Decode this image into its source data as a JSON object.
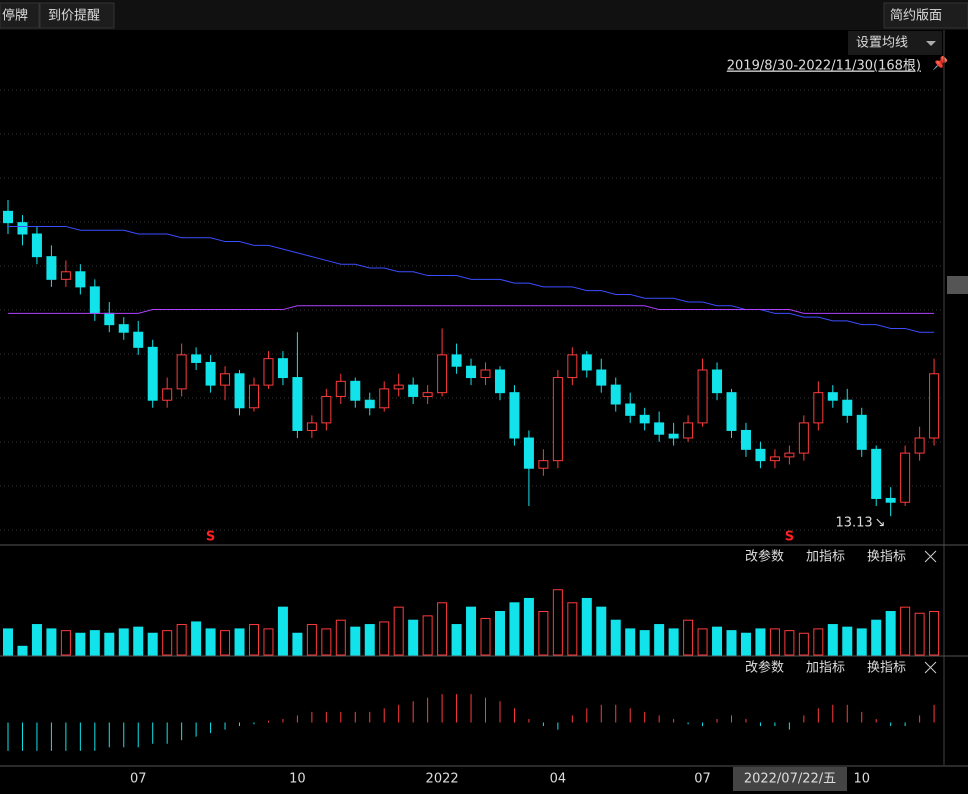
{
  "toolbar": {
    "left": [
      "停牌",
      "到价提醒"
    ],
    "right": "简约版面"
  },
  "panel_buttons": [
    "改参数",
    "加指标",
    "换指标"
  ],
  "chart_data": {
    "type": "candlestick",
    "ma_button": "设置均线",
    "range_label": "2019/8/30-2022/11/30(168根)",
    "crosshair_date": "2022/07/22/五",
    "up_color": "#ff3b3b",
    "down_color": "#12e3ea",
    "ylim": [
      12.5,
      26
    ],
    "categories": [
      null,
      null,
      null,
      null,
      null,
      null,
      null,
      null,
      null,
      "07",
      null,
      null,
      null,
      null,
      null,
      null,
      null,
      null,
      null,
      null,
      "10",
      null,
      null,
      null,
      null,
      null,
      null,
      null,
      null,
      null,
      "2022",
      null,
      null,
      null,
      null,
      null,
      null,
      null,
      "04",
      null,
      null,
      null,
      null,
      null,
      null,
      null,
      null,
      null,
      "07",
      null,
      null,
      null,
      null,
      null,
      null,
      null,
      null,
      null,
      null,
      "10",
      null,
      null,
      null,
      null,
      null
    ],
    "ohlc": [
      [
        21.2,
        21.5,
        20.6,
        20.9
      ],
      [
        20.9,
        21.1,
        20.3,
        20.6
      ],
      [
        20.6,
        20.8,
        19.8,
        20.0
      ],
      [
        20.0,
        20.3,
        19.2,
        19.4
      ],
      [
        19.4,
        19.9,
        19.2,
        19.6
      ],
      [
        19.6,
        19.8,
        19.0,
        19.2
      ],
      [
        19.2,
        19.4,
        18.3,
        18.5
      ],
      [
        18.5,
        18.8,
        18.0,
        18.2
      ],
      [
        18.2,
        18.4,
        17.8,
        18.0
      ],
      [
        18.0,
        18.3,
        17.4,
        17.6
      ],
      [
        17.6,
        17.8,
        16.0,
        16.2
      ],
      [
        16.2,
        16.8,
        16.0,
        16.5
      ],
      [
        16.5,
        17.7,
        16.3,
        17.4
      ],
      [
        17.4,
        17.6,
        17.0,
        17.2
      ],
      [
        17.2,
        17.4,
        16.4,
        16.6
      ],
      [
        16.6,
        17.1,
        16.2,
        16.9
      ],
      [
        16.9,
        17.0,
        15.8,
        16.0
      ],
      [
        16.0,
        16.8,
        15.9,
        16.6
      ],
      [
        16.6,
        17.5,
        16.5,
        17.3
      ],
      [
        17.3,
        17.5,
        16.6,
        16.8
      ],
      [
        16.8,
        18.0,
        15.2,
        15.4
      ],
      [
        15.4,
        15.8,
        15.2,
        15.6
      ],
      [
        15.6,
        16.5,
        15.4,
        16.3
      ],
      [
        16.3,
        16.9,
        16.1,
        16.7
      ],
      [
        16.7,
        16.8,
        16.0,
        16.2
      ],
      [
        16.2,
        16.4,
        15.8,
        16.0
      ],
      [
        16.0,
        16.7,
        15.9,
        16.5
      ],
      [
        16.5,
        16.9,
        16.3,
        16.6
      ],
      [
        16.6,
        16.8,
        16.1,
        16.3
      ],
      [
        16.3,
        16.6,
        16.1,
        16.4
      ],
      [
        16.4,
        18.1,
        16.3,
        17.4
      ],
      [
        17.4,
        17.7,
        16.9,
        17.1
      ],
      [
        17.1,
        17.3,
        16.6,
        16.8
      ],
      [
        16.8,
        17.2,
        16.6,
        17.0
      ],
      [
        17.0,
        17.1,
        16.2,
        16.4
      ],
      [
        16.4,
        16.6,
        15.0,
        15.2
      ],
      [
        15.2,
        15.4,
        13.4,
        14.4
      ],
      [
        14.4,
        14.9,
        14.2,
        14.6
      ],
      [
        14.6,
        17.0,
        14.4,
        16.8
      ],
      [
        16.8,
        17.6,
        16.6,
        17.4
      ],
      [
        17.4,
        17.5,
        16.8,
        17.0
      ],
      [
        17.0,
        17.3,
        16.4,
        16.6
      ],
      [
        16.6,
        16.8,
        15.9,
        16.1
      ],
      [
        16.1,
        16.4,
        15.6,
        15.8
      ],
      [
        15.8,
        16.0,
        15.4,
        15.6
      ],
      [
        15.6,
        15.9,
        15.1,
        15.3
      ],
      [
        15.3,
        15.6,
        15.0,
        15.2
      ],
      [
        15.2,
        15.8,
        15.1,
        15.6
      ],
      [
        15.6,
        17.3,
        15.5,
        17.0
      ],
      [
        17.0,
        17.2,
        16.2,
        16.4
      ],
      [
        16.4,
        16.5,
        15.2,
        15.4
      ],
      [
        15.4,
        15.6,
        14.7,
        14.9
      ],
      [
        14.9,
        15.1,
        14.4,
        14.6
      ],
      [
        14.6,
        14.9,
        14.4,
        14.7
      ],
      [
        14.7,
        15.0,
        14.5,
        14.8
      ],
      [
        14.8,
        15.8,
        14.6,
        15.6
      ],
      [
        15.6,
        16.7,
        15.4,
        16.4
      ],
      [
        16.4,
        16.6,
        16.0,
        16.2
      ],
      [
        16.2,
        16.5,
        15.6,
        15.8
      ],
      [
        15.8,
        16.0,
        14.7,
        14.9
      ],
      [
        14.9,
        15.0,
        13.4,
        13.6
      ],
      [
        13.6,
        13.9,
        13.13,
        13.5
      ],
      [
        13.5,
        15.0,
        13.4,
        14.8
      ],
      [
        14.8,
        15.5,
        14.6,
        15.2
      ],
      [
        15.2,
        17.3,
        15.0,
        16.9
      ]
    ],
    "signals": [
      null,
      null,
      null,
      null,
      null,
      null,
      null,
      null,
      null,
      null,
      null,
      null,
      null,
      null,
      "S",
      null,
      null,
      null,
      null,
      null,
      null,
      null,
      null,
      null,
      null,
      null,
      null,
      null,
      null,
      null,
      null,
      null,
      null,
      null,
      null,
      null,
      null,
      null,
      null,
      null,
      null,
      null,
      null,
      null,
      null,
      null,
      null,
      null,
      null,
      null,
      null,
      null,
      null,
      null,
      "S",
      null,
      null,
      null,
      null,
      null,
      null,
      null,
      null,
      null,
      null
    ],
    "series": [
      {
        "color": "#3a4dff",
        "values": [
          20.8,
          20.8,
          20.8,
          20.8,
          20.8,
          20.7,
          20.7,
          20.7,
          20.7,
          20.6,
          20.6,
          20.6,
          20.5,
          20.5,
          20.5,
          20.4,
          20.4,
          20.3,
          20.3,
          20.2,
          20.1,
          20.0,
          19.9,
          19.8,
          19.8,
          19.7,
          19.7,
          19.6,
          19.6,
          19.5,
          19.5,
          19.5,
          19.4,
          19.4,
          19.4,
          19.3,
          19.3,
          19.2,
          19.2,
          19.2,
          19.1,
          19.1,
          19.0,
          19.0,
          18.9,
          18.9,
          18.9,
          18.8,
          18.8,
          18.7,
          18.7,
          18.6,
          18.6,
          18.5,
          18.5,
          18.4,
          18.4,
          18.3,
          18.3,
          18.2,
          18.2,
          18.1,
          18.1,
          18.0,
          18.0
        ]
      },
      {
        "color": "#b040ff",
        "values": [
          18.5,
          18.5,
          18.5,
          18.5,
          18.5,
          18.5,
          18.5,
          18.5,
          18.5,
          18.5,
          18.6,
          18.6,
          18.6,
          18.6,
          18.6,
          18.6,
          18.6,
          18.6,
          18.6,
          18.6,
          18.7,
          18.7,
          18.7,
          18.7,
          18.7,
          18.7,
          18.7,
          18.7,
          18.7,
          18.7,
          18.7,
          18.7,
          18.7,
          18.7,
          18.7,
          18.7,
          18.7,
          18.7,
          18.7,
          18.7,
          18.7,
          18.7,
          18.7,
          18.7,
          18.7,
          18.6,
          18.6,
          18.6,
          18.6,
          18.6,
          18.6,
          18.6,
          18.6,
          18.6,
          18.6,
          18.5,
          18.5,
          18.5,
          18.5,
          18.5,
          18.5,
          18.5,
          18.5,
          18.5,
          18.5
        ]
      }
    ],
    "volume": {
      "ylim": [
        0,
        100
      ],
      "values": [
        30,
        10,
        35,
        30,
        28,
        25,
        28,
        25,
        30,
        32,
        25,
        28,
        35,
        38,
        30,
        28,
        30,
        35,
        30,
        55,
        25,
        35,
        30,
        40,
        32,
        35,
        38,
        55,
        40,
        45,
        60,
        35,
        55,
        42,
        50,
        60,
        65,
        50,
        75,
        60,
        65,
        55,
        40,
        30,
        28,
        35,
        30,
        40,
        30,
        32,
        28,
        25,
        30,
        30,
        28,
        25,
        30,
        35,
        32,
        30,
        40,
        50,
        55,
        48,
        50
      ]
    },
    "macd": {
      "ylim": [
        -1.2,
        1.2
      ],
      "values": [
        -0.8,
        -0.8,
        -0.8,
        -0.8,
        -0.8,
        -0.8,
        -0.8,
        -0.7,
        -0.7,
        -0.7,
        -0.6,
        -0.6,
        -0.5,
        -0.4,
        -0.3,
        -0.2,
        -0.1,
        -0.05,
        0.05,
        0.1,
        0.2,
        0.3,
        0.3,
        0.3,
        0.3,
        0.3,
        0.4,
        0.5,
        0.6,
        0.7,
        0.8,
        0.8,
        0.8,
        0.7,
        0.6,
        0.4,
        0.1,
        -0.1,
        -0.2,
        0.2,
        0.4,
        0.5,
        0.5,
        0.4,
        0.3,
        0.2,
        0.1,
        -0.05,
        -0.1,
        0.1,
        0.2,
        0.1,
        -0.1,
        -0.1,
        -0.2,
        0.2,
        0.4,
        0.5,
        0.5,
        0.3,
        0.1,
        -0.1,
        -0.1,
        0.2,
        0.5
      ]
    }
  }
}
